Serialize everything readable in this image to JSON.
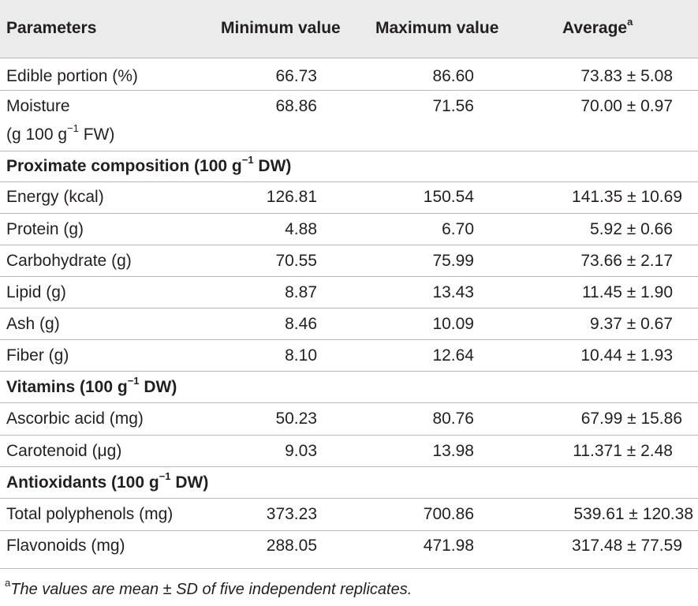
{
  "header": {
    "parameters": "Parameters",
    "minimum": "Minimum value",
    "maximum": "Maximum value",
    "average": "Average",
    "average_sup": "a"
  },
  "rows": [
    {
      "label": "Edible portion (%)",
      "min": "66.73",
      "max": "86.60",
      "avg": "73.83 ± 5.08"
    },
    {
      "label": "Moisture",
      "label_line2_pre": "(g 100 g",
      "label_line2_sup": "−1",
      "label_line2_post": " FW)",
      "min": "68.86",
      "max": "71.56",
      "avg": "70.00 ± 0.97"
    },
    {
      "section": "Proximate composition (100 g",
      "section_sup": "−1",
      "section_post": " DW)"
    },
    {
      "label": "Energy (kcal)",
      "min": "126.81",
      "max": "150.54",
      "avg": "141.35 ± 10.69"
    },
    {
      "label": "Protein (g)",
      "min": "4.88",
      "max": "6.70",
      "avg": "5.92 ± 0.66"
    },
    {
      "label": "Carbohydrate (g)",
      "min": "70.55",
      "max": "75.99",
      "avg": "73.66 ± 2.17"
    },
    {
      "label": "Lipid (g)",
      "min": "8.87",
      "max": "13.43",
      "avg": "11.45 ± 1.90"
    },
    {
      "label": "Ash (g)",
      "min": "8.46",
      "max": "10.09",
      "avg": "9.37 ± 0.67"
    },
    {
      "label": "Fiber (g)",
      "min": "8.10",
      "max": "12.64",
      "avg": "10.44 ± 1.93"
    },
    {
      "section": "Vitamins (100 g",
      "section_sup": "−1",
      "section_post": " DW)"
    },
    {
      "label": "Ascorbic acid (mg)",
      "min": "50.23",
      "max": "80.76",
      "avg": "67.99 ± 15.86"
    },
    {
      "label": "Carotenoid (μg)",
      "min": "9.03",
      "max": "13.98",
      "avg": "11.371 ± 2.48"
    },
    {
      "section": "Antioxidants (100 g",
      "section_sup": "−1",
      "section_post": " DW)"
    },
    {
      "label": "Total polyphenols (mg)",
      "min": "373.23",
      "max": "700.86",
      "avg": "539.61 ± 120.38"
    },
    {
      "label": "Flavonoids (mg)",
      "min": "288.05",
      "max": "471.98",
      "avg": "317.48 ± 77.59"
    }
  ],
  "footnote": {
    "marker": "a",
    "text": "The values are mean ± SD of five independent replicates."
  },
  "colors": {
    "header_band": "#ebebeb",
    "rule": "#b8b8b8",
    "text": "#231f20"
  }
}
